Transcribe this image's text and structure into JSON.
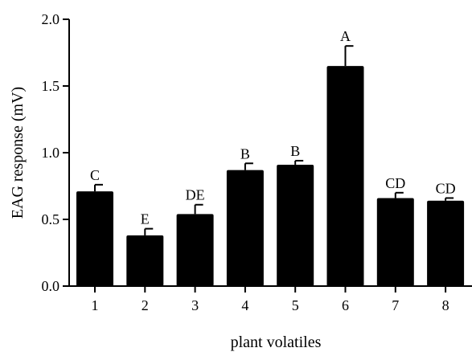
{
  "chart_data": {
    "type": "bar",
    "xlabel": "plant volatiles",
    "ylabel": "EAG response (mV)",
    "ylim": [
      0,
      2.0
    ],
    "y_ticks": [
      "0.0",
      "0.5",
      "1.0",
      "1.5",
      "2.0"
    ],
    "categories": [
      "1",
      "2",
      "3",
      "4",
      "5",
      "6",
      "7",
      "8"
    ],
    "values": [
      0.71,
      0.38,
      0.54,
      0.87,
      0.91,
      1.65,
      0.66,
      0.64
    ],
    "errors": [
      0.05,
      0.05,
      0.07,
      0.05,
      0.03,
      0.15,
      0.04,
      0.02
    ],
    "letters": [
      "C",
      "E",
      "DE",
      "B",
      "B",
      "A",
      "CD",
      "CD"
    ],
    "grid": false,
    "bar_color": "#000000"
  }
}
